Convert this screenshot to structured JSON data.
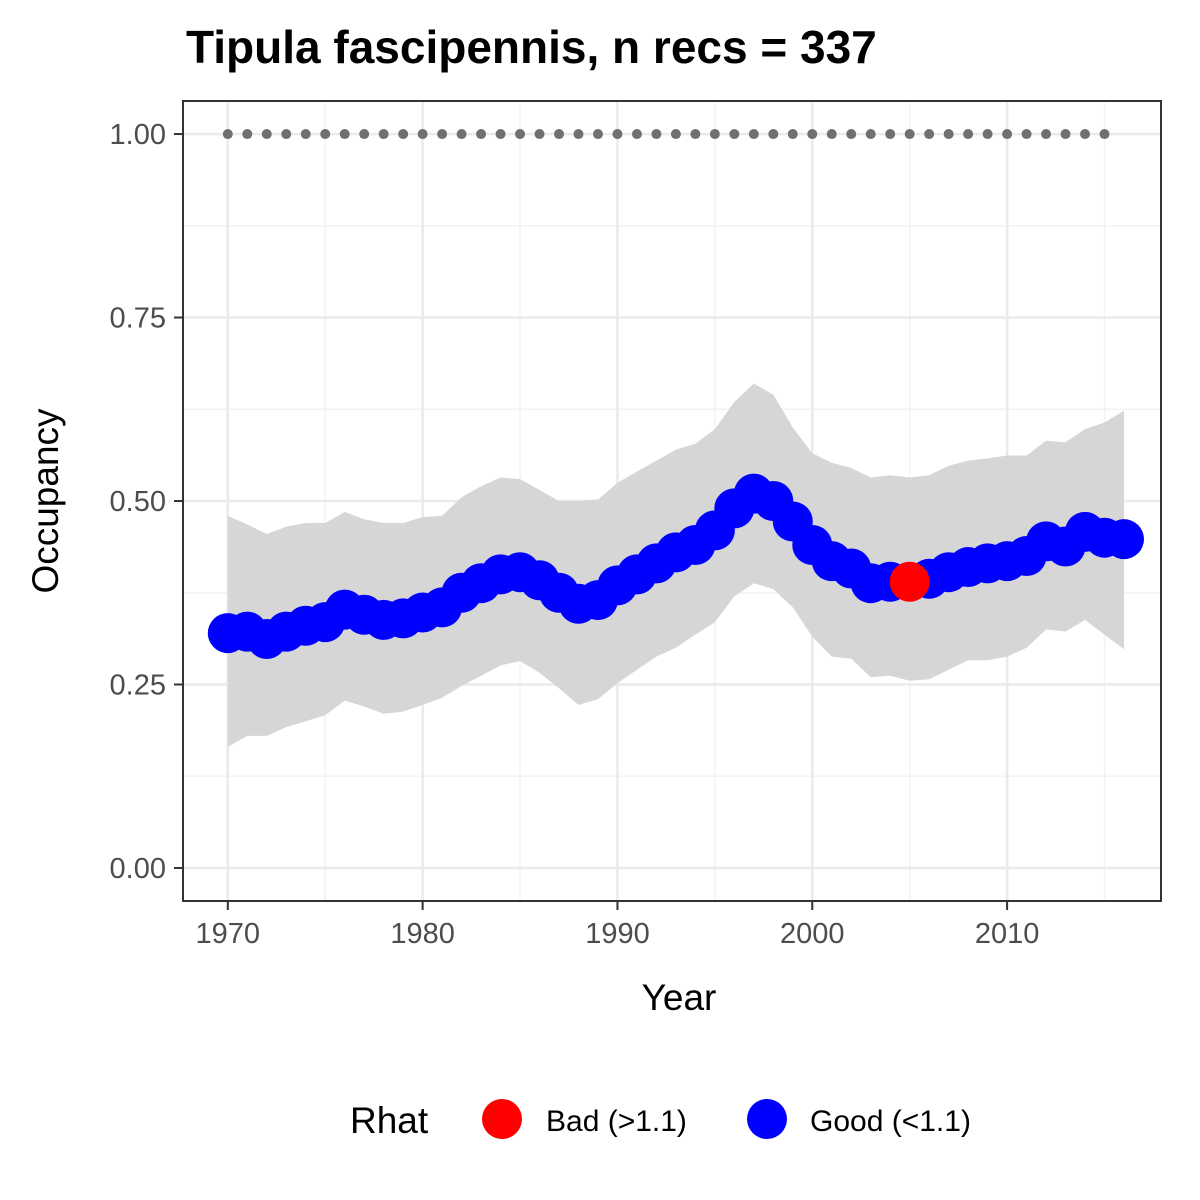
{
  "chart_data": {
    "type": "line",
    "title": "Tipula fascipennis, n recs = 337",
    "xlabel": "Year",
    "ylabel": "Occupancy",
    "xlim": [
      1967.7,
      2017.9
    ],
    "ylim": [
      -0.045,
      1.045
    ],
    "x_ticks": [
      1970,
      1980,
      1990,
      2000,
      2010
    ],
    "x_tick_labels": [
      "1970",
      "1980",
      "1990",
      "2000",
      "2010"
    ],
    "y_ticks": [
      0.0,
      0.25,
      0.5,
      0.75,
      1.0
    ],
    "y_tick_labels": [
      "0.00",
      "0.25",
      "0.50",
      "0.75",
      "1.00"
    ],
    "grid": true,
    "legend": {
      "title": "Rhat",
      "position": "bottom",
      "entries": [
        {
          "label": "Bad (>1.1)",
          "color": "#ff0000"
        },
        {
          "label": "Good (<1.1)",
          "color": "#0000ff"
        }
      ]
    },
    "colors": {
      "bad": "#ff0000",
      "good": "#0000ff",
      "ribbon": "#d6d6d6",
      "reference_points": "#707070"
    },
    "series": [
      {
        "kind": "points",
        "x": [
          1970,
          1971,
          1972,
          1973,
          1974,
          1975,
          1976,
          1977,
          1978,
          1979,
          1980,
          1981,
          1982,
          1983,
          1984,
          1985,
          1986,
          1987,
          1988,
          1989,
          1990,
          1991,
          1992,
          1993,
          1994,
          1995,
          1996,
          1997,
          1998,
          1999,
          2000,
          2001,
          2002,
          2003,
          2004,
          2005,
          2006,
          2007,
          2008,
          2009,
          2010,
          2011,
          2012,
          2013,
          2014,
          2015,
          2016
        ],
        "y": [
          0.32,
          0.322,
          0.312,
          0.322,
          0.33,
          0.335,
          0.352,
          0.345,
          0.338,
          0.34,
          0.348,
          0.355,
          0.375,
          0.388,
          0.4,
          0.403,
          0.392,
          0.375,
          0.36,
          0.365,
          0.385,
          0.4,
          0.415,
          0.43,
          0.44,
          0.46,
          0.49,
          0.51,
          0.5,
          0.472,
          0.44,
          0.418,
          0.408,
          0.388,
          0.39,
          0.39,
          0.394,
          0.403,
          0.41,
          0.415,
          0.418,
          0.425,
          0.445,
          0.438,
          0.458,
          0.45,
          0.448
        ],
        "rhat": [
          "Good",
          "Good",
          "Good",
          "Good",
          "Good",
          "Good",
          "Good",
          "Good",
          "Good",
          "Good",
          "Good",
          "Good",
          "Good",
          "Good",
          "Good",
          "Good",
          "Good",
          "Good",
          "Good",
          "Good",
          "Good",
          "Good",
          "Good",
          "Good",
          "Good",
          "Good",
          "Good",
          "Good",
          "Good",
          "Good",
          "Good",
          "Good",
          "Good",
          "Good",
          "Good",
          "Bad",
          "Good",
          "Good",
          "Good",
          "Good",
          "Good",
          "Good",
          "Good",
          "Good",
          "Good",
          "Good",
          "Good"
        ],
        "lower": [
          0.165,
          0.18,
          0.18,
          0.192,
          0.2,
          0.208,
          0.228,
          0.22,
          0.21,
          0.213,
          0.222,
          0.232,
          0.248,
          0.262,
          0.276,
          0.282,
          0.266,
          0.245,
          0.222,
          0.23,
          0.252,
          0.27,
          0.288,
          0.3,
          0.318,
          0.335,
          0.37,
          0.388,
          0.38,
          0.355,
          0.315,
          0.288,
          0.285,
          0.26,
          0.262,
          0.255,
          0.257,
          0.27,
          0.283,
          0.283,
          0.288,
          0.3,
          0.325,
          0.322,
          0.338,
          0.318,
          0.298
        ],
        "upper": [
          0.48,
          0.468,
          0.455,
          0.465,
          0.47,
          0.47,
          0.485,
          0.475,
          0.47,
          0.47,
          0.478,
          0.48,
          0.505,
          0.52,
          0.532,
          0.53,
          0.515,
          0.5,
          0.5,
          0.502,
          0.525,
          0.54,
          0.555,
          0.57,
          0.578,
          0.598,
          0.635,
          0.66,
          0.645,
          0.6,
          0.565,
          0.552,
          0.545,
          0.532,
          0.535,
          0.532,
          0.535,
          0.548,
          0.555,
          0.558,
          0.562,
          0.562,
          0.582,
          0.58,
          0.598,
          0.607,
          0.623
        ]
      },
      {
        "kind": "reference-points",
        "x": [
          1970,
          1971,
          1972,
          1973,
          1974,
          1975,
          1976,
          1977,
          1978,
          1979,
          1980,
          1981,
          1982,
          1983,
          1984,
          1985,
          1986,
          1987,
          1988,
          1989,
          1990,
          1991,
          1992,
          1993,
          1994,
          1995,
          1996,
          1997,
          1998,
          1999,
          2000,
          2001,
          2002,
          2003,
          2004,
          2005,
          2006,
          2007,
          2008,
          2009,
          2010,
          2011,
          2012,
          2013,
          2014,
          2015
        ],
        "y": [
          1,
          1,
          1,
          1,
          1,
          1,
          1,
          1,
          1,
          1,
          1,
          1,
          1,
          1,
          1,
          1,
          1,
          1,
          1,
          1,
          1,
          1,
          1,
          1,
          1,
          1,
          1,
          1,
          1,
          1,
          1,
          1,
          1,
          1,
          1,
          1,
          1,
          1,
          1,
          1,
          1,
          1,
          1,
          1,
          1,
          1
        ]
      }
    ]
  }
}
